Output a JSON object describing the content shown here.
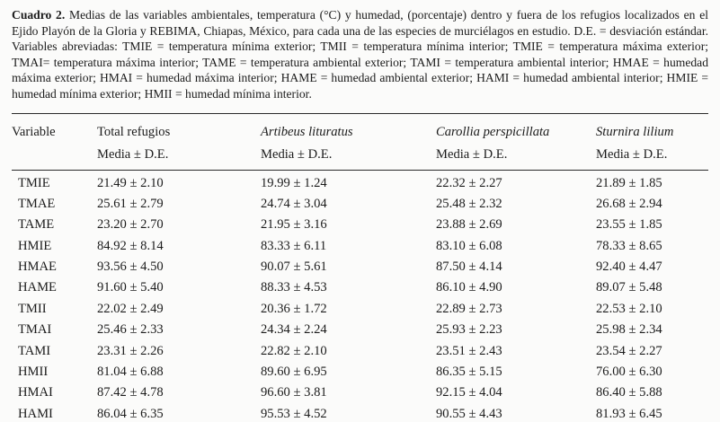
{
  "caption": {
    "label": "Cuadro 2.",
    "text": "Medias de las variables ambientales, temperatura (°C) y humedad, (porcentaje) dentro y fuera de los refugios localizados en el Ejido Playón de la Gloria y REBIMA, Chiapas, México, para cada una de las especies de murciélagos en estudio. D.E. = desviación estándar. Variables abreviadas: TMIE = temperatura mínima exterior; TMII = temperatura mínima interior; TMIE = temperatura máxima exterior; TMAI= temperatura máxima interior; TAME = temperatura ambiental exterior; TAMI = temperatura ambiental interior; HMAE = humedad máxima exterior; HMAI = humedad máxima interior; HAME = humedad ambiental exterior; HAMI = humedad ambiental interior; HMIE = humedad mínima exterior; HMII = humedad mínima interior."
  },
  "table": {
    "columns": [
      {
        "label": "Variable",
        "sub": ""
      },
      {
        "label": "Total refugios",
        "sub": "Media ± D.E."
      },
      {
        "label": "Artibeus lituratus",
        "sub": "Media ± D.E."
      },
      {
        "label": "Carollia perspicillata",
        "sub": "Media ± D.E."
      },
      {
        "label": "Sturnira lilium",
        "sub": "Media ± D.E."
      }
    ],
    "rows": [
      {
        "variable": "TMIE",
        "values": [
          "21.49 ± 2.10",
          "19.99 ± 1.24",
          "22.32 ± 2.27",
          "21.89 ± 1.85"
        ]
      },
      {
        "variable": "TMAE",
        "values": [
          "25.61 ± 2.79",
          "24.74 ± 3.04",
          "25.48 ± 2.32",
          "26.68 ± 2.94"
        ]
      },
      {
        "variable": "TAME",
        "values": [
          "23.20 ± 2.70",
          "21.95 ± 3.16",
          "23.88 ± 2.69",
          "23.55 ± 1.85"
        ]
      },
      {
        "variable": "HMIE",
        "values": [
          "84.92 ± 8.14",
          "83.33 ± 6.11",
          "83.10 ± 6.08",
          "78.33 ± 8.65"
        ]
      },
      {
        "variable": "HMAE",
        "values": [
          "93.56 ± 4.50",
          "90.07 ± 5.61",
          "87.50 ± 4.14",
          "92.40 ± 4.47"
        ]
      },
      {
        "variable": "HAME",
        "values": [
          "91.60 ± 5.40",
          "88.33 ± 4.53",
          "86.10 ± 4.90",
          "89.07 ± 5.48"
        ]
      },
      {
        "variable": "TMII",
        "values": [
          "22.02 ± 2.49",
          "20.36 ± 1.72",
          "22.89 ± 2.73",
          "22.53 ± 2.10"
        ]
      },
      {
        "variable": "TMAI",
        "values": [
          "25.46 ± 2.33",
          "24.34 ± 2.24",
          "25.93 ± 2.23",
          "25.98 ± 2.34"
        ]
      },
      {
        "variable": "TAMI",
        "values": [
          "23.31 ± 2.26",
          "22.82 ± 2.10",
          "23.51 ± 2.43",
          "23.54 ± 2.27"
        ]
      },
      {
        "variable": "HMII",
        "values": [
          "81.04 ± 6.88",
          "89.60 ± 6.95",
          "86.35 ± 5.15",
          "76.00 ± 6.30"
        ]
      },
      {
        "variable": "HMAI",
        "values": [
          "87.42 ± 4.78",
          "96.60 ± 3.81",
          "92.15 ± 4.04",
          "86.40 ± 5.88"
        ]
      },
      {
        "variable": "HAMI",
        "values": [
          "86.04 ± 6.35",
          "95.53 ± 4.52",
          "90.55 ± 4.43",
          "81.93 ± 6.45"
        ]
      }
    ]
  }
}
